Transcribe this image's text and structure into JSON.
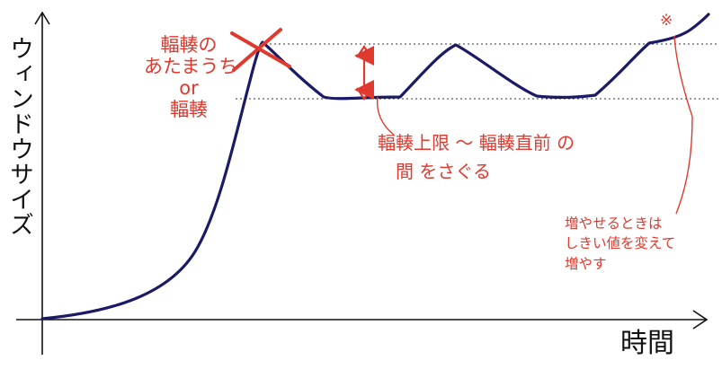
{
  "axes": {
    "y_label": "ウィンドウサイズ",
    "x_label": "時間"
  },
  "annotations": {
    "crash_note": [
      "輻輳の",
      "あたまうち",
      "or",
      "輻輳"
    ],
    "search_note_line1": "輻輳上限 〜 輻輳直前 の",
    "search_note_line2": "間 をさぐる",
    "threshold_note": [
      "増やせるときは",
      "しきい値を変えて",
      "増やす"
    ],
    "asterisk": "※"
  },
  "colors": {
    "curve": "#1a1a66",
    "annotation": "#e0392e",
    "axis": "#111111",
    "guide": "#333333"
  }
}
